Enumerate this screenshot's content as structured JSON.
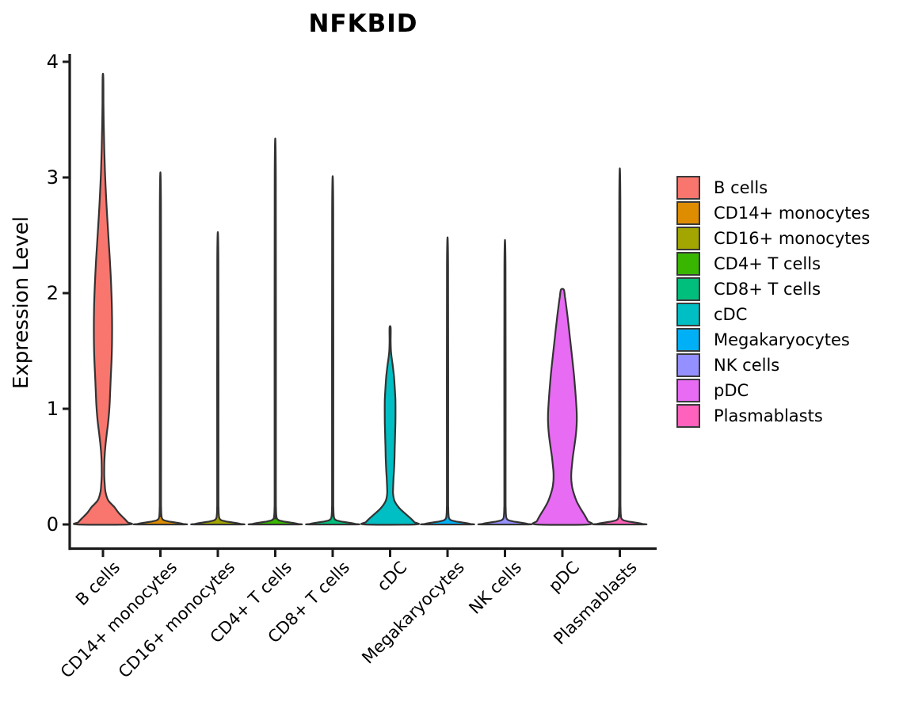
{
  "title": "NFKBID",
  "chart_data": {
    "type": "violin",
    "title": "NFKBID",
    "xlabel": "",
    "ylabel": "Expression Level",
    "ylim": [
      0,
      4
    ],
    "y_ticks": [
      0,
      1,
      2,
      3,
      4
    ],
    "grid": false,
    "legend_position": "right",
    "categories": [
      {
        "label": "B cells",
        "color": "#F8766D",
        "max": 3.87,
        "profile": [
          [
            3.87,
            0.012
          ],
          [
            3.65,
            0.018
          ],
          [
            3.45,
            0.028
          ],
          [
            3.25,
            0.045
          ],
          [
            3.05,
            0.07
          ],
          [
            2.85,
            0.105
          ],
          [
            2.65,
            0.15
          ],
          [
            2.45,
            0.2
          ],
          [
            2.25,
            0.25
          ],
          [
            2.05,
            0.29
          ],
          [
            1.85,
            0.315
          ],
          [
            1.65,
            0.32
          ],
          [
            1.45,
            0.305
          ],
          [
            1.25,
            0.27
          ],
          [
            1.05,
            0.235
          ],
          [
            0.9,
            0.19
          ],
          [
            0.78,
            0.13
          ],
          [
            0.68,
            0.085
          ],
          [
            0.58,
            0.055
          ],
          [
            0.5,
            0.045
          ],
          [
            0.42,
            0.045
          ],
          [
            0.35,
            0.06
          ],
          [
            0.28,
            0.09
          ],
          [
            0.21,
            0.18
          ],
          [
            0.15,
            0.4
          ],
          [
            0.1,
            0.55
          ],
          [
            0.05,
            0.75
          ],
          [
            0.02,
            0.86
          ],
          [
            0,
            0.9
          ]
        ]
      },
      {
        "label": "CD14+ monocytes",
        "color": "#DE8C00",
        "max": 2.74,
        "profile": [
          [
            2.74,
            0.02
          ],
          [
            0.3,
            0.022
          ],
          [
            0.15,
            0.025
          ],
          [
            0.08,
            0.035
          ],
          [
            0.05,
            0.06
          ],
          [
            0.035,
            0.14
          ],
          [
            0.025,
            0.32
          ],
          [
            0.016,
            0.55
          ],
          [
            0.009,
            0.72
          ],
          [
            0.004,
            0.8
          ],
          [
            0,
            0.82
          ]
        ]
      },
      {
        "label": "CD16+ monocytes",
        "color": "#A3A500",
        "max": 2.28,
        "profile": [
          [
            2.28,
            0.02
          ],
          [
            0.3,
            0.022
          ],
          [
            0.15,
            0.025
          ],
          [
            0.08,
            0.035
          ],
          [
            0.05,
            0.06
          ],
          [
            0.035,
            0.14
          ],
          [
            0.025,
            0.32
          ],
          [
            0.016,
            0.55
          ],
          [
            0.009,
            0.72
          ],
          [
            0.004,
            0.8
          ],
          [
            0,
            0.82
          ]
        ]
      },
      {
        "label": "CD4+ T cells",
        "color": "#39B600",
        "max": 3.0,
        "profile": [
          [
            3.0,
            0.02
          ],
          [
            0.3,
            0.022
          ],
          [
            0.15,
            0.025
          ],
          [
            0.08,
            0.035
          ],
          [
            0.05,
            0.06
          ],
          [
            0.035,
            0.14
          ],
          [
            0.025,
            0.32
          ],
          [
            0.016,
            0.55
          ],
          [
            0.009,
            0.72
          ],
          [
            0.004,
            0.8
          ],
          [
            0,
            0.82
          ]
        ]
      },
      {
        "label": "CD8+ T cells",
        "color": "#00BF7D",
        "max": 2.71,
        "profile": [
          [
            2.71,
            0.02
          ],
          [
            0.3,
            0.022
          ],
          [
            0.15,
            0.025
          ],
          [
            0.08,
            0.035
          ],
          [
            0.05,
            0.06
          ],
          [
            0.035,
            0.14
          ],
          [
            0.025,
            0.32
          ],
          [
            0.016,
            0.55
          ],
          [
            0.009,
            0.72
          ],
          [
            0.004,
            0.8
          ],
          [
            0,
            0.82
          ]
        ]
      },
      {
        "label": "cDC",
        "color": "#00BFC4",
        "max": 1.7,
        "profile": [
          [
            1.7,
            0.02
          ],
          [
            1.58,
            0.02
          ],
          [
            1.48,
            0.035
          ],
          [
            1.38,
            0.09
          ],
          [
            1.28,
            0.135
          ],
          [
            1.18,
            0.165
          ],
          [
            1.08,
            0.185
          ],
          [
            0.98,
            0.19
          ],
          [
            0.88,
            0.185
          ],
          [
            0.78,
            0.175
          ],
          [
            0.68,
            0.165
          ],
          [
            0.58,
            0.155
          ],
          [
            0.48,
            0.14
          ],
          [
            0.4,
            0.12
          ],
          [
            0.32,
            0.105
          ],
          [
            0.26,
            0.105
          ],
          [
            0.2,
            0.16
          ],
          [
            0.14,
            0.33
          ],
          [
            0.09,
            0.55
          ],
          [
            0.05,
            0.73
          ],
          [
            0.02,
            0.85
          ],
          [
            0,
            0.89
          ]
        ]
      },
      {
        "label": "Megakaryocytes",
        "color": "#00B0F6",
        "max": 2.24,
        "profile": [
          [
            2.24,
            0.02
          ],
          [
            0.3,
            0.022
          ],
          [
            0.15,
            0.025
          ],
          [
            0.08,
            0.035
          ],
          [
            0.05,
            0.06
          ],
          [
            0.035,
            0.14
          ],
          [
            0.025,
            0.32
          ],
          [
            0.016,
            0.55
          ],
          [
            0.009,
            0.72
          ],
          [
            0.004,
            0.8
          ],
          [
            0,
            0.82
          ]
        ]
      },
      {
        "label": "NK cells",
        "color": "#9590FF",
        "max": 2.22,
        "profile": [
          [
            2.22,
            0.02
          ],
          [
            0.3,
            0.022
          ],
          [
            0.15,
            0.025
          ],
          [
            0.08,
            0.035
          ],
          [
            0.05,
            0.06
          ],
          [
            0.035,
            0.14
          ],
          [
            0.025,
            0.32
          ],
          [
            0.016,
            0.55
          ],
          [
            0.009,
            0.72
          ],
          [
            0.004,
            0.8
          ],
          [
            0,
            0.82
          ]
        ]
      },
      {
        "label": "pDC",
        "color": "#E76BF3",
        "max": 2.03,
        "profile": [
          [
            2.03,
            0.05
          ],
          [
            1.97,
            0.09
          ],
          [
            1.88,
            0.14
          ],
          [
            1.78,
            0.19
          ],
          [
            1.68,
            0.235
          ],
          [
            1.58,
            0.28
          ],
          [
            1.48,
            0.325
          ],
          [
            1.38,
            0.37
          ],
          [
            1.28,
            0.41
          ],
          [
            1.18,
            0.445
          ],
          [
            1.08,
            0.475
          ],
          [
            0.98,
            0.5
          ],
          [
            0.9,
            0.505
          ],
          [
            0.82,
            0.49
          ],
          [
            0.74,
            0.455
          ],
          [
            0.66,
            0.41
          ],
          [
            0.58,
            0.365
          ],
          [
            0.5,
            0.33
          ],
          [
            0.44,
            0.31
          ],
          [
            0.38,
            0.315
          ],
          [
            0.32,
            0.345
          ],
          [
            0.26,
            0.41
          ],
          [
            0.2,
            0.5
          ],
          [
            0.14,
            0.63
          ],
          [
            0.08,
            0.78
          ],
          [
            0.03,
            0.89
          ],
          [
            0,
            0.92
          ]
        ]
      },
      {
        "label": "Plasmablasts",
        "color": "#FF62BC",
        "max": 2.77,
        "profile": [
          [
            2.77,
            0.02
          ],
          [
            0.3,
            0.022
          ],
          [
            0.15,
            0.025
          ],
          [
            0.08,
            0.035
          ],
          [
            0.05,
            0.06
          ],
          [
            0.035,
            0.14
          ],
          [
            0.025,
            0.32
          ],
          [
            0.016,
            0.55
          ],
          [
            0.009,
            0.72
          ],
          [
            0.004,
            0.8
          ],
          [
            0,
            0.82
          ]
        ]
      }
    ]
  },
  "style": {
    "axis_color": "#1a1a1a",
    "violin_stroke": "#333333",
    "text_color": "#000000"
  }
}
